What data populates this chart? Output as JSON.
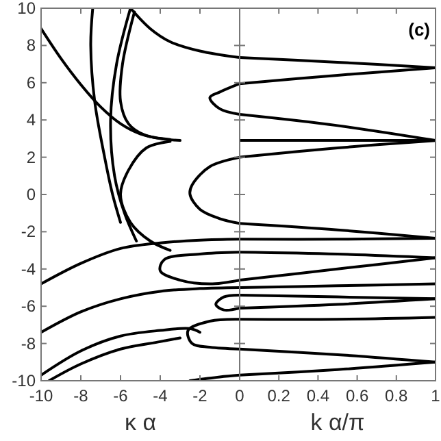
{
  "chart_data": [
    {
      "type": "line",
      "xlabel": "κ α",
      "xlim": [
        -10,
        0
      ],
      "xticks": [
        -10,
        -8,
        -6,
        -4,
        -2,
        {
          "value": 0,
          "label": null
        }
      ],
      "ylim": [
        -10,
        10
      ],
      "yticks": [
        -10,
        -8,
        -6,
        -4,
        -2,
        0,
        2,
        4,
        6,
        8,
        10
      ],
      "grid": false,
      "line_style": "solid",
      "series": [
        {
          "color": "#000000",
          "x": [
            -10,
            -9,
            -8,
            -7,
            -6,
            -5,
            -4,
            -3
          ],
          "values": [
            8.9,
            7.3,
            5.9,
            4.7,
            3.8,
            3.25,
            3.0,
            2.9
          ]
        },
        {
          "color": "#000000",
          "x": [
            -5.5,
            -4.5,
            -3.5,
            -2,
            0
          ],
          "values": [
            10,
            8.9,
            8.2,
            7.7,
            7.35
          ]
        },
        {
          "color": "#000000",
          "x": [
            -7.4,
            -7.5,
            -7.3,
            -6.8,
            -6.4,
            -6
          ],
          "values": [
            10,
            8,
            5,
            2,
            0,
            -1.5
          ]
        },
        {
          "color": "#000000",
          "x": [
            -5.5,
            -6.2,
            -6.5,
            -6.3,
            -5.8,
            -5.2
          ],
          "values": [
            10,
            7,
            4,
            1,
            -1,
            -2.5
          ]
        },
        {
          "color": "#000000",
          "x": [
            -5.3,
            -5.9,
            -6.0,
            -5.6,
            -4.8,
            -3.5
          ],
          "values": [
            9.8,
            7,
            5,
            3.8,
            3.2,
            2.95
          ]
        },
        {
          "color": "#000000",
          "x": [
            -3.5,
            -4.7,
            -5.6,
            -6,
            -5.5,
            -4.5,
            -3.5
          ],
          "values": [
            2.85,
            2.5,
            1.3,
            0,
            -1.5,
            -2.5,
            -3
          ]
        },
        {
          "color": "#000000",
          "x": [
            0,
            -1,
            -1.5,
            -1,
            0
          ],
          "values": [
            5.95,
            5.5,
            5.2,
            4.6,
            4.3
          ]
        },
        {
          "color": "#000000",
          "x": [
            0,
            -1.5,
            -2.4,
            -2.5,
            -2,
            -1,
            0
          ],
          "values": [
            2.0,
            1.5,
            0.5,
            0,
            -0.8,
            -1.3,
            -1.55
          ]
        },
        {
          "color": "#000000",
          "x": [
            -10,
            -8,
            -6,
            -4,
            -2,
            0
          ],
          "values": [
            -4.8,
            -3.7,
            -2.9,
            -2.6,
            -2.45,
            -2.4
          ]
        },
        {
          "color": "#000000",
          "x": [
            -10,
            -8,
            -6,
            -4,
            -2,
            0
          ],
          "values": [
            -7.4,
            -6.3,
            -5.6,
            -5.2,
            -5.05,
            -5.0
          ]
        },
        {
          "color": "#000000",
          "x": [
            -10,
            -8,
            -6,
            -4,
            -2.5,
            -2
          ],
          "values": [
            -9.7,
            -8.4,
            -7.6,
            -7.3,
            -7.2,
            -7.4
          ]
        },
        {
          "color": "#000000",
          "x": [
            -9.6,
            -8,
            -6,
            -4,
            -3
          ],
          "values": [
            -10,
            -9.1,
            -8.3,
            -7.9,
            -7.7
          ]
        },
        {
          "color": "#000000",
          "x": [
            0,
            -2,
            -3.8,
            -4,
            -3,
            -1.5,
            0
          ],
          "values": [
            -3.1,
            -3.2,
            -3.5,
            -4.1,
            -4.6,
            -4.8,
            -4.6
          ]
        },
        {
          "color": "#000000",
          "x": [
            0,
            -1.5,
            -2.6,
            -2.4,
            -1.5,
            0
          ],
          "values": [
            -6.7,
            -6.8,
            -7.3,
            -8,
            -8.2,
            -8.3
          ]
        },
        {
          "color": "#000000",
          "x": [
            -2.5,
            -1,
            0
          ],
          "values": [
            -10,
            -9.8,
            -9.7
          ]
        },
        {
          "color": "#000000",
          "x": [
            0,
            -0.8,
            -1.2,
            -0.8,
            0
          ],
          "values": [
            -5.4,
            -5.5,
            -5.9,
            -6.2,
            -6.1
          ]
        }
      ]
    },
    {
      "type": "line",
      "xlabel": "k α/π",
      "annotations": [
        "(c)"
      ],
      "xlim": [
        0,
        1
      ],
      "xticks": [
        0,
        0.2,
        0.4,
        0.6,
        0.8,
        1
      ],
      "ylim": [
        -10,
        10
      ],
      "yticks": [
        {
          "value": -10,
          "label": null
        },
        {
          "value": -8,
          "label": null
        },
        {
          "value": -6,
          "label": null
        },
        {
          "value": -4,
          "label": null
        },
        {
          "value": -2,
          "label": null
        },
        {
          "value": 0,
          "label": null
        },
        {
          "value": 2,
          "label": null
        },
        {
          "value": 4,
          "label": null
        },
        {
          "value": 6,
          "label": null
        },
        {
          "value": 8,
          "label": null
        },
        {
          "value": 10,
          "label": null
        }
      ],
      "tick_labels": "x",
      "grid": false,
      "line_style": "solid",
      "series": [
        {
          "color": "#000000",
          "x": [
            0,
            0.5,
            1
          ],
          "values": [
            7.35,
            7.1,
            6.8
          ]
        },
        {
          "color": "#000000",
          "x": [
            1,
            0.5,
            0
          ],
          "values": [
            6.8,
            6.4,
            5.95
          ]
        },
        {
          "color": "#000000",
          "x": [
            0,
            0.5,
            1
          ],
          "values": [
            4.3,
            3.7,
            2.9
          ]
        },
        {
          "color": "#000000",
          "x": [
            0,
            1
          ],
          "values": [
            2.9,
            2.9
          ]
        },
        {
          "color": "#000000",
          "x": [
            1,
            0.5,
            0
          ],
          "values": [
            2.9,
            2.5,
            2.0
          ]
        },
        {
          "color": "#000000",
          "x": [
            0,
            0.5,
            1
          ],
          "values": [
            -1.55,
            -1.9,
            -2.35
          ]
        },
        {
          "color": "#000000",
          "x": [
            0,
            0.5,
            1
          ],
          "values": [
            -2.4,
            -2.4,
            -2.35
          ]
        },
        {
          "color": "#000000",
          "x": [
            0,
            0.5,
            1
          ],
          "values": [
            -3.1,
            -3.2,
            -3.4
          ]
        },
        {
          "color": "#000000",
          "x": [
            0,
            0.5,
            1
          ],
          "values": [
            -4.6,
            -4.0,
            -3.4
          ]
        },
        {
          "color": "#000000",
          "x": [
            0,
            0.5,
            1
          ],
          "values": [
            -5.0,
            -4.9,
            -4.8
          ]
        },
        {
          "color": "#000000",
          "x": [
            0,
            0.5,
            1
          ],
          "values": [
            -5.4,
            -5.5,
            -5.6
          ]
        },
        {
          "color": "#000000",
          "x": [
            0,
            0.5,
            1
          ],
          "values": [
            -6.1,
            -5.9,
            -5.6
          ]
        },
        {
          "color": "#000000",
          "x": [
            0,
            0.5,
            1
          ],
          "values": [
            -6.7,
            -6.7,
            -6.6
          ]
        },
        {
          "color": "#000000",
          "x": [
            0,
            0.5,
            1
          ],
          "values": [
            -8.3,
            -8.6,
            -9.0
          ]
        },
        {
          "color": "#000000",
          "x": [
            0,
            0.5,
            1
          ],
          "values": [
            -9.7,
            -9.4,
            -9.0
          ]
        }
      ]
    }
  ]
}
